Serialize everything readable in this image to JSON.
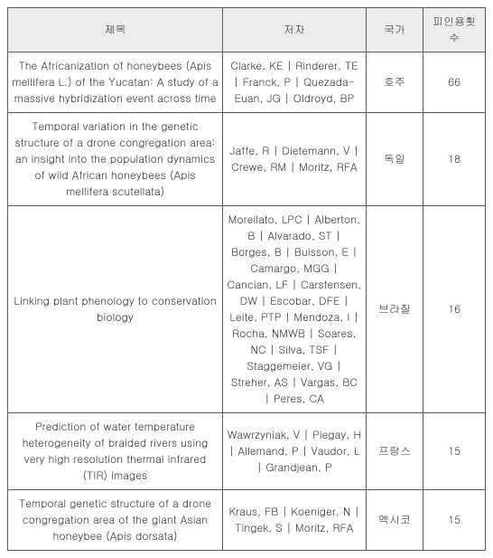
{
  "table": {
    "headers": {
      "title": "제목",
      "author": "저자",
      "country": "국가",
      "cited": "피인용횟수"
    },
    "rows": [
      {
        "title": "The Africanization of honeybees (Apis mellifera L.) of the Yucatan: A study of a massive hybridization event across time",
        "author": "Clarke, KE | Rinderer, TE | Franck, P | Quezada-Euan, JG | Oldroyd, BP",
        "country": "호주",
        "cited": "66"
      },
      {
        "title": "Temporal variation in the genetic structure of a drone congregation area: an insight into the population dynamics of wild African honeybees (Apis mellifera scutellata)",
        "author": "Jaffe, R | Dietemann, V | Crewe, RM | Moritz, RFA",
        "country": "독일",
        "cited": "18"
      },
      {
        "title": "Linking plant phenology to conservation biology",
        "author": "Morellato, LPC | Alberton, B | Alvarado, ST | Borges, B | Buisson, E | Camargo, MGG | Cancian, LF | Carstensen, DW | Escobar, DFE | Leite, PTP | Mendoza, I | Rocha, NMWB | Soares, NC | Silva, TSF | Staggemeier, VG | Streher, AS | Vargas, BC | Peres, CA",
        "country": "브라질",
        "cited": "16"
      },
      {
        "title": "Prediction of water temperature heterogeneity of braided rivers using very high resolution thermal infrared (TIR) images",
        "author": "Wawrzyniak, V | Piegay, H | Allemand, P | Vaudor, L | Grandjean, P",
        "country": "프랑스",
        "cited": "15"
      },
      {
        "title": "Temporal genetic structure of a drone congregation area of the giant Asian honeybee (Apis dorsata)",
        "author": "Kraus, FB | Koeniger, N | Tingek, S | Moritz, RFA",
        "country": "멕시코",
        "cited": "15"
      }
    ]
  },
  "colors": {
    "header_bg": "#ececec",
    "border": "#5a5a5a",
    "text": "#333333",
    "background": "#ffffff"
  },
  "font": {
    "size_pt": 12,
    "family": "Malgun Gothic"
  }
}
